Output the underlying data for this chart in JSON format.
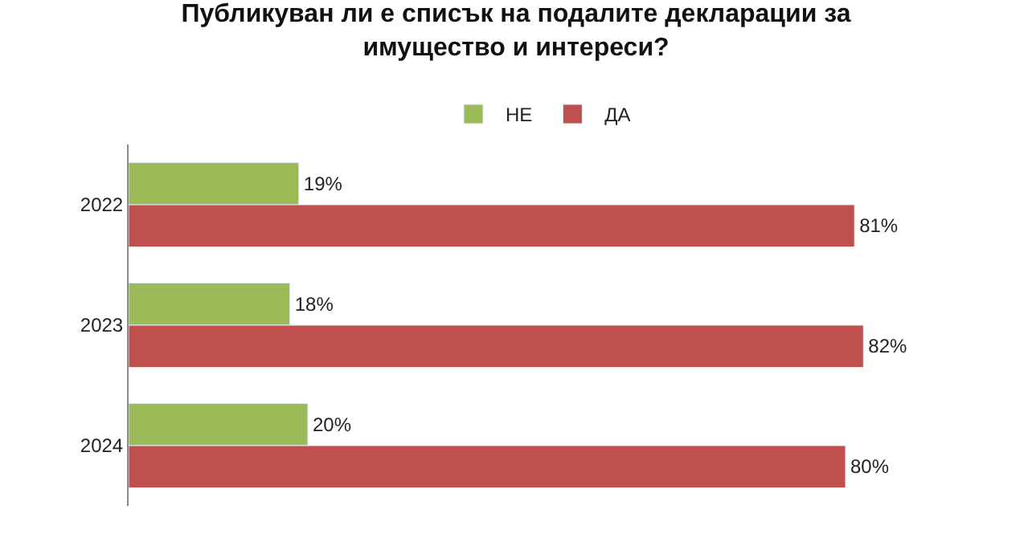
{
  "chart_data": {
    "type": "bar",
    "orientation": "horizontal",
    "title": "Публикуван ли е списък на подалите декларации за имущество и интереси?",
    "categories": [
      "2022",
      "2023",
      "2024"
    ],
    "series": [
      {
        "name": "НЕ",
        "color": "#9bbb59",
        "values": [
          19,
          18,
          20
        ],
        "value_labels": [
          "19%",
          "18%",
          "20%"
        ]
      },
      {
        "name": "ДА",
        "color": "#c0504d",
        "values": [
          81,
          82,
          80
        ],
        "value_labels": [
          "81%",
          "82%",
          "80%"
        ]
      }
    ],
    "legend": "top"
  }
}
